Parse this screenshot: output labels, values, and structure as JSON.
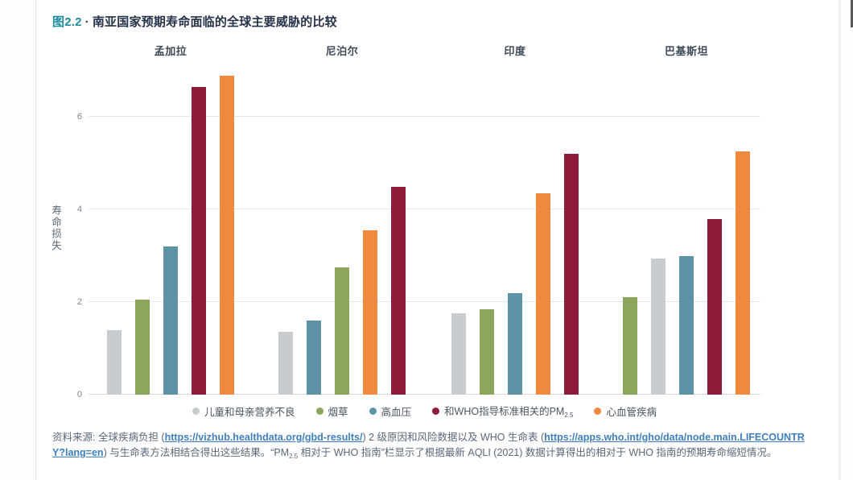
{
  "page": {
    "title": {
      "figure_label": "图2.2",
      "separator": "·",
      "text": "南亚国家预期寿命面临的全球主要威胁的比较"
    }
  },
  "colors": {
    "malnutrition_gray": "#c8ccce",
    "tobacco_green": "#8ea65b",
    "blood_pressure_teal": "#5d92a7",
    "pm25_darkred": "#8c1c39",
    "cardio_orange": "#f0893e",
    "title_accent_teal": "#1c8c9e",
    "title_navy": "#253248",
    "link_blue": "#3f7fc1"
  },
  "chart_data": {
    "type": "bar",
    "title": "图2.2 · 南亚国家预期寿命面临的全球主要威胁的比较",
    "xlabel": "",
    "ylabel": "寿命损失",
    "ylim": [
      0,
      7.05
    ],
    "yticks": [
      0,
      2,
      4,
      6
    ],
    "grid": "horizontal",
    "legend_position": "bottom",
    "categories": [
      "孟加拉",
      "尼泊尔",
      "印度",
      "巴基斯坦"
    ],
    "series": [
      {
        "name": "儿童和母亲营养不良",
        "color": "#c8ccce",
        "values": [
          1.4,
          1.35,
          1.75,
          2.95
        ]
      },
      {
        "name": "烟草",
        "color": "#8ea65b",
        "values": [
          2.05,
          2.75,
          1.85,
          2.1
        ]
      },
      {
        "name": "高血压",
        "color": "#5d92a7",
        "values": [
          3.2,
          1.6,
          2.2,
          3.0
        ]
      },
      {
        "name": "和WHO指导标准相关的PM2.5",
        "color": "#8c1c39",
        "values": [
          6.65,
          4.5,
          5.2,
          3.8
        ]
      },
      {
        "name": "心血管疾病",
        "color": "#f0893e",
        "values": [
          6.9,
          3.55,
          4.35,
          5.25
        ]
      }
    ],
    "note": "bars within each country group are drawn in ascending order of value",
    "groups": [
      {
        "country": "孟加拉",
        "bars": [
          {
            "label": "儿童和母亲营养不良",
            "color": "#c8ccce",
            "value": 1.4
          },
          {
            "label": "烟草",
            "color": "#8ea65b",
            "value": 2.05
          },
          {
            "label": "高血压",
            "color": "#5d92a7",
            "value": 3.2
          },
          {
            "label": "和WHO指导标准相关的PM2.5",
            "color": "#8c1c39",
            "value": 6.65
          },
          {
            "label": "心血管疾病",
            "color": "#f0893e",
            "value": 6.9
          }
        ]
      },
      {
        "country": "尼泊尔",
        "bars": [
          {
            "label": "儿童和母亲营养不良",
            "color": "#c8ccce",
            "value": 1.35
          },
          {
            "label": "高血压",
            "color": "#5d92a7",
            "value": 1.6
          },
          {
            "label": "烟草",
            "color": "#8ea65b",
            "value": 2.75
          },
          {
            "label": "心血管疾病",
            "color": "#f0893e",
            "value": 3.55
          },
          {
            "label": "和WHO指导标准相关的PM2.5",
            "color": "#8c1c39",
            "value": 4.5
          }
        ]
      },
      {
        "country": "印度",
        "bars": [
          {
            "label": "儿童和母亲营养不良",
            "color": "#c8ccce",
            "value": 1.75
          },
          {
            "label": "烟草",
            "color": "#8ea65b",
            "value": 1.85
          },
          {
            "label": "高血压",
            "color": "#5d92a7",
            "value": 2.2
          },
          {
            "label": "心血管疾病",
            "color": "#f0893e",
            "value": 4.35
          },
          {
            "label": "和WHO指导标准相关的PM2.5",
            "color": "#8c1c39",
            "value": 5.2
          }
        ]
      },
      {
        "country": "巴基斯坦",
        "bars": [
          {
            "label": "烟草",
            "color": "#8ea65b",
            "value": 2.1
          },
          {
            "label": "儿童和母亲营养不良",
            "color": "#c8ccce",
            "value": 2.95
          },
          {
            "label": "高血压",
            "color": "#5d92a7",
            "value": 3.0
          },
          {
            "label": "和WHO指导标准相关的PM2.5",
            "color": "#8c1c39",
            "value": 3.8
          },
          {
            "label": "心血管疾病",
            "color": "#f0893e",
            "value": 5.25
          }
        ]
      }
    ],
    "legend": [
      {
        "label": "儿童和母亲营养不良",
        "label_sub": "",
        "color": "#c8ccce"
      },
      {
        "label": "烟草",
        "label_sub": "",
        "color": "#8ea65b"
      },
      {
        "label": "高血压",
        "label_sub": "",
        "color": "#5d92a7"
      },
      {
        "label": "和WHO指导标准相关的PM",
        "label_sub": "2.5",
        "color": "#8c1c39"
      },
      {
        "label": "心血管疾病",
        "label_sub": "",
        "color": "#f0893e"
      }
    ]
  },
  "source_note": {
    "segments": [
      {
        "text": "资料来源: 全球疾病负担 ("
      },
      {
        "text": "https://vizhub.healthdata.org/gbd-results/",
        "link": true
      },
      {
        "text": ") 2 级原因和风险数据以及 WHO 生命表 ("
      },
      {
        "text": "https://apps.who.int/gho/data/node.main.LIFECOUNTRY?lang=en",
        "link": true
      },
      {
        "text": ") 与生命表方法相结合得出这些结果。“PM"
      },
      {
        "text": "2.5",
        "sub": true
      },
      {
        "text": " 相对于 WHO 指南”栏显示了根据最新 AQLI (2021) 数据计算得出的相对于 WHO 指南的预期寿命缩短情况。"
      }
    ]
  }
}
